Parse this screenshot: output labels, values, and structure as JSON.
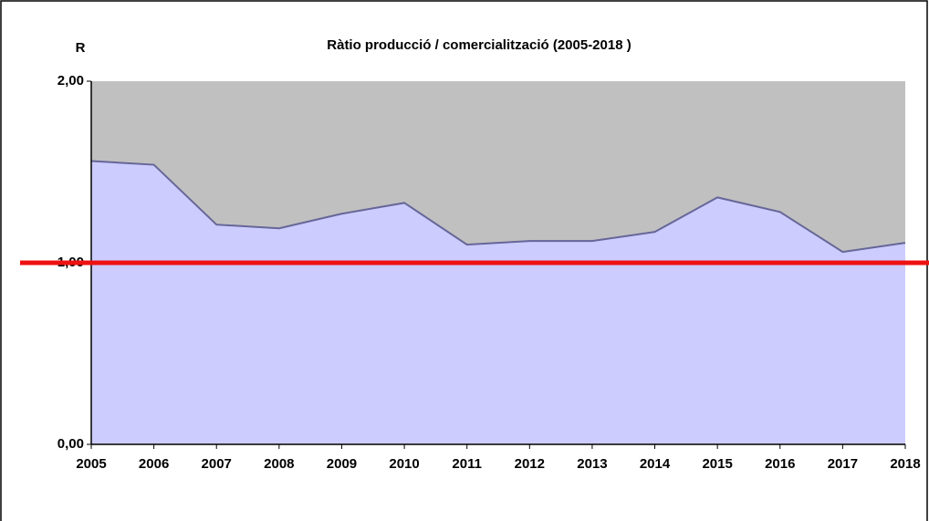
{
  "chart_data": {
    "type": "area",
    "title": "Ràtio producció / comercialització (2005-2018 )",
    "y_label": "R",
    "categories": [
      "2005",
      "2006",
      "2007",
      "2008",
      "2009",
      "2010",
      "2011",
      "2012",
      "2013",
      "2014",
      "2015",
      "2016",
      "2017",
      "2018"
    ],
    "values": [
      1.56,
      1.54,
      1.21,
      1.19,
      1.27,
      1.33,
      1.1,
      1.12,
      1.12,
      1.17,
      1.36,
      1.28,
      1.06,
      1.11
    ],
    "color": "#ccccff",
    "line_color": "#666699",
    "plot_background": "#c0c0c0",
    "reference_line": 1,
    "reference_color": "#ee1111",
    "ylim": [
      0,
      2
    ],
    "yticks": [
      {
        "value": 0,
        "label": "0,00"
      },
      {
        "value": 1,
        "label": "1,00"
      },
      {
        "value": 2,
        "label": "2,00"
      }
    ]
  }
}
